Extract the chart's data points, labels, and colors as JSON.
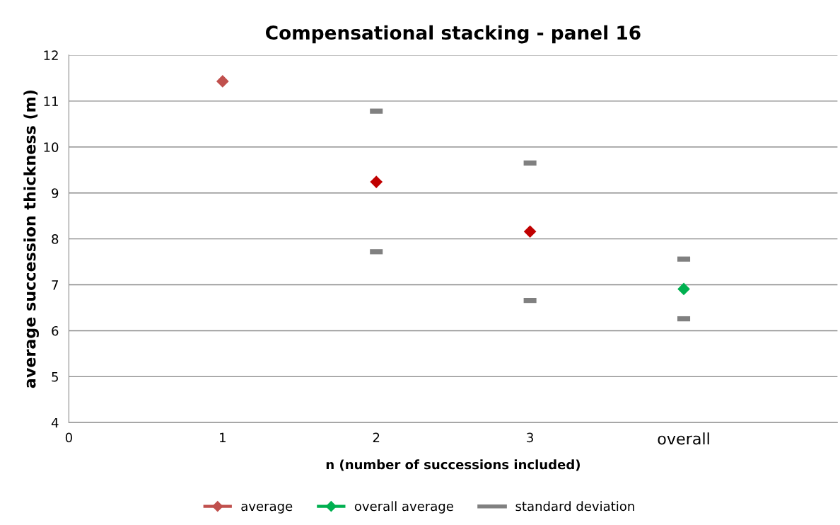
{
  "chart_data": {
    "type": "scatter",
    "title": "Compensational stacking - panel 16",
    "xlabel": "n (number of successions included)",
    "ylabel": "average succession thickness (m)",
    "xlim": [
      0,
      5
    ],
    "xticks": [
      0,
      1,
      2,
      3,
      {
        "value": 4,
        "label": "overall"
      }
    ],
    "ylim": [
      4,
      12
    ],
    "yticks": [
      4,
      5,
      6,
      7,
      8,
      9,
      10,
      11,
      12
    ],
    "grid": "y",
    "legend": "bottom",
    "series": [
      {
        "name": "average",
        "color": "#c0504d",
        "colors": [
          "#c0504d",
          "#c00000",
          "#c00000"
        ],
        "marker": "diamond",
        "x": [
          1,
          2,
          3
        ],
        "values": [
          11.43,
          9.24,
          8.16
        ]
      },
      {
        "name": "overall average",
        "color": "#00b050",
        "marker": "diamond",
        "x": [
          4
        ],
        "values": [
          6.91
        ]
      },
      {
        "name": "standard deviation",
        "color": "#808080",
        "x": [
          2,
          2,
          3,
          3,
          4,
          4
        ],
        "values": [
          10.78,
          7.72,
          9.65,
          6.66,
          7.56,
          6.26
        ]
      }
    ]
  }
}
